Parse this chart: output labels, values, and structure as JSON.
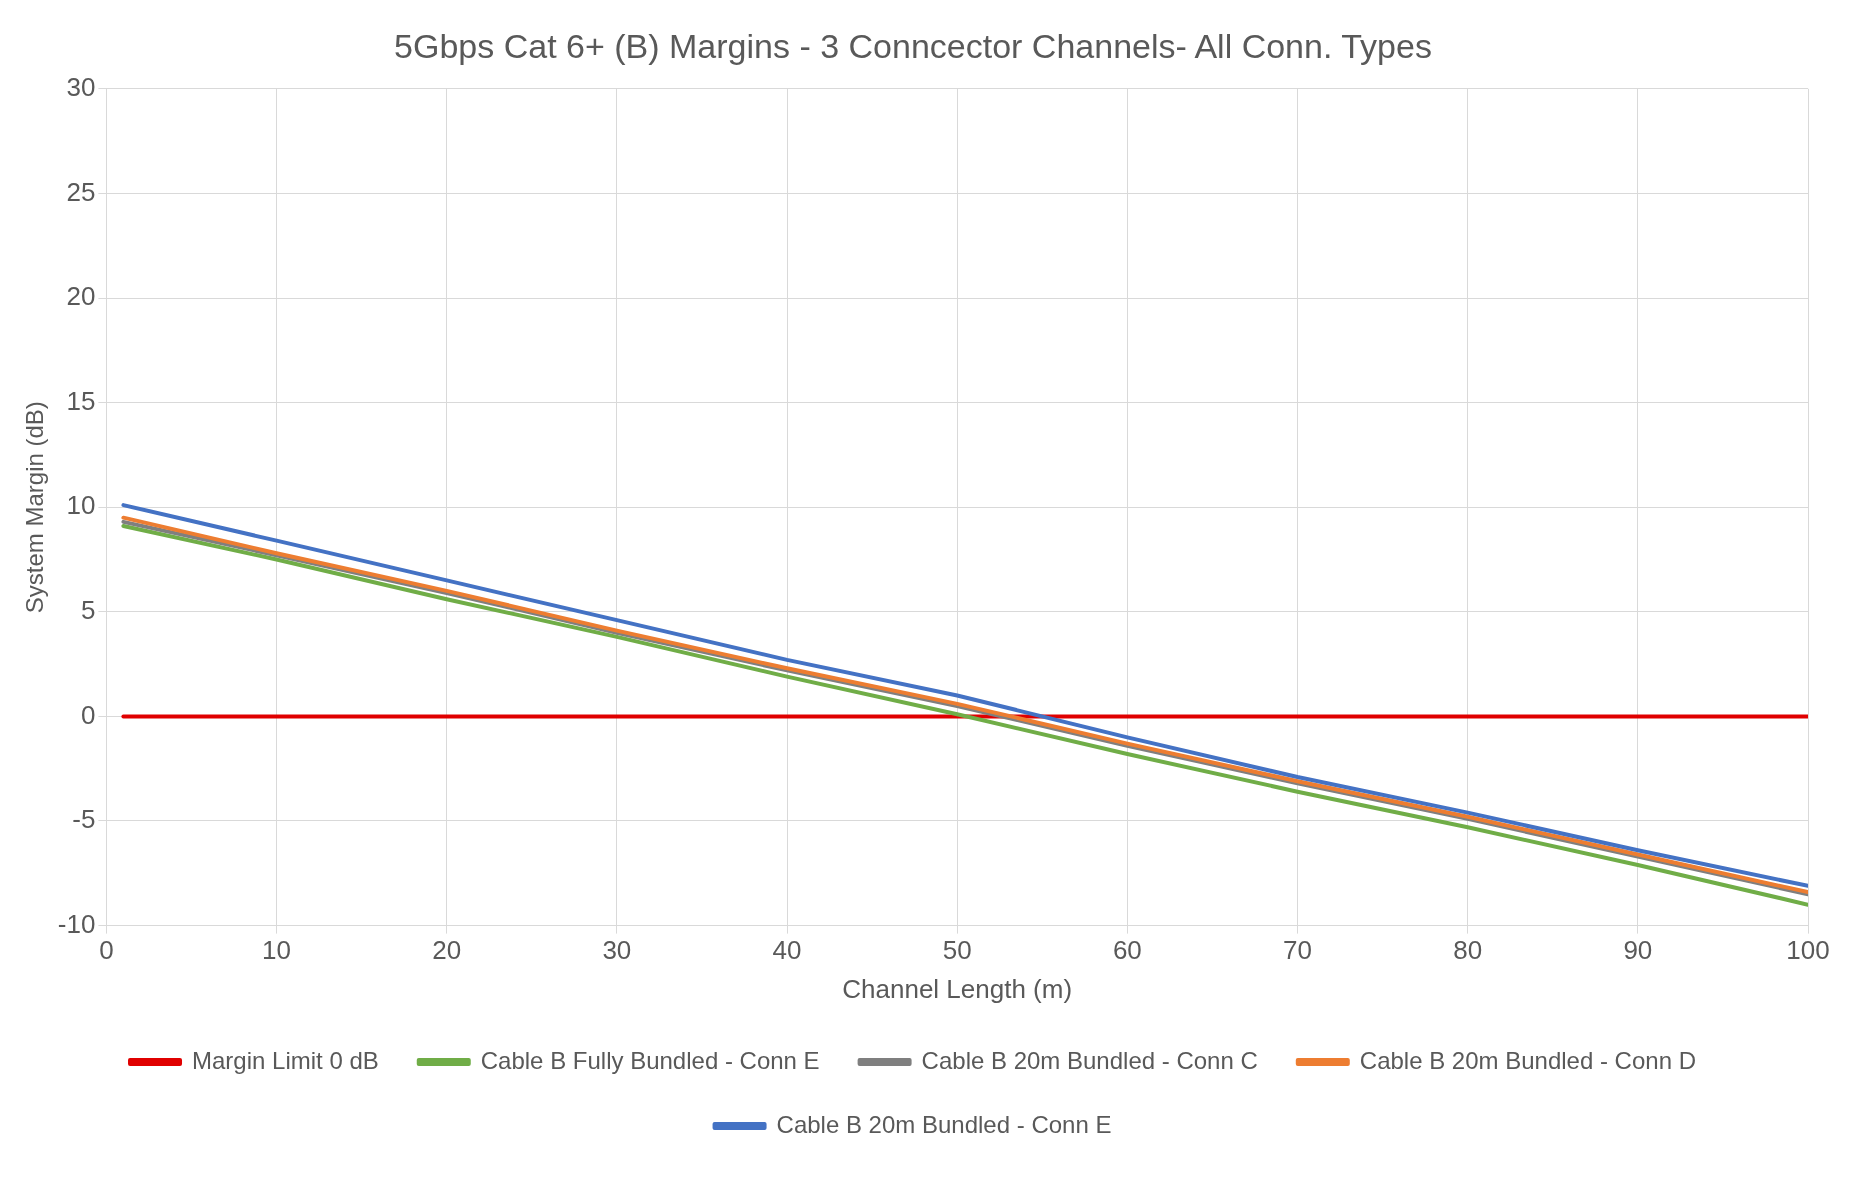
{
  "chart_data": {
    "type": "line",
    "title": "5Gbps Cat 6+ (B) Margins - 3 Conncector Channels- All Conn. Types",
    "xlabel": "Channel Length (m)",
    "ylabel": "System Margin (dB)",
    "x": [
      1,
      10,
      20,
      30,
      40,
      50,
      60,
      70,
      80,
      90,
      100
    ],
    "series": [
      {
        "name": "Margin Limit 0 dB",
        "color": "#e00000",
        "values": [
          0,
          0,
          0,
          0,
          0,
          0,
          0,
          0,
          0,
          0,
          0
        ]
      },
      {
        "name": "Cable B Fully Bundled - Conn E",
        "color": "#70ad47",
        "values": [
          9.1,
          7.5,
          5.6,
          3.8,
          1.9,
          0.1,
          -1.8,
          -3.6,
          -5.3,
          -7.1,
          -9.0
        ]
      },
      {
        "name": "Cable B 20m Bundled - Conn C",
        "color": "#7f7f7f",
        "values": [
          9.3,
          7.7,
          5.9,
          4.0,
          2.2,
          0.5,
          -1.4,
          -3.2,
          -4.9,
          -6.7,
          -8.5
        ]
      },
      {
        "name": "Cable B 20m Bundled - Conn D",
        "color": "#ed7d31",
        "values": [
          9.5,
          7.8,
          6.0,
          4.1,
          2.3,
          0.6,
          -1.3,
          -3.1,
          -4.8,
          -6.6,
          -8.4
        ]
      },
      {
        "name": "Cable B 20m Bundled - Conn E",
        "color": "#4472c4",
        "values": [
          10.1,
          8.4,
          6.5,
          4.6,
          2.7,
          1.0,
          -1.0,
          -2.9,
          -4.6,
          -6.4,
          -8.1
        ]
      }
    ],
    "xlim": [
      0,
      100
    ],
    "xticks": [
      0,
      10,
      20,
      30,
      40,
      50,
      60,
      70,
      80,
      90,
      100
    ],
    "ylim": [
      -10,
      30
    ],
    "yticks": [
      -10,
      -5,
      0,
      5,
      10,
      15,
      20,
      25,
      30
    ],
    "grid": true,
    "legend": "bottom",
    "marker": "none",
    "line_style": "solid"
  }
}
